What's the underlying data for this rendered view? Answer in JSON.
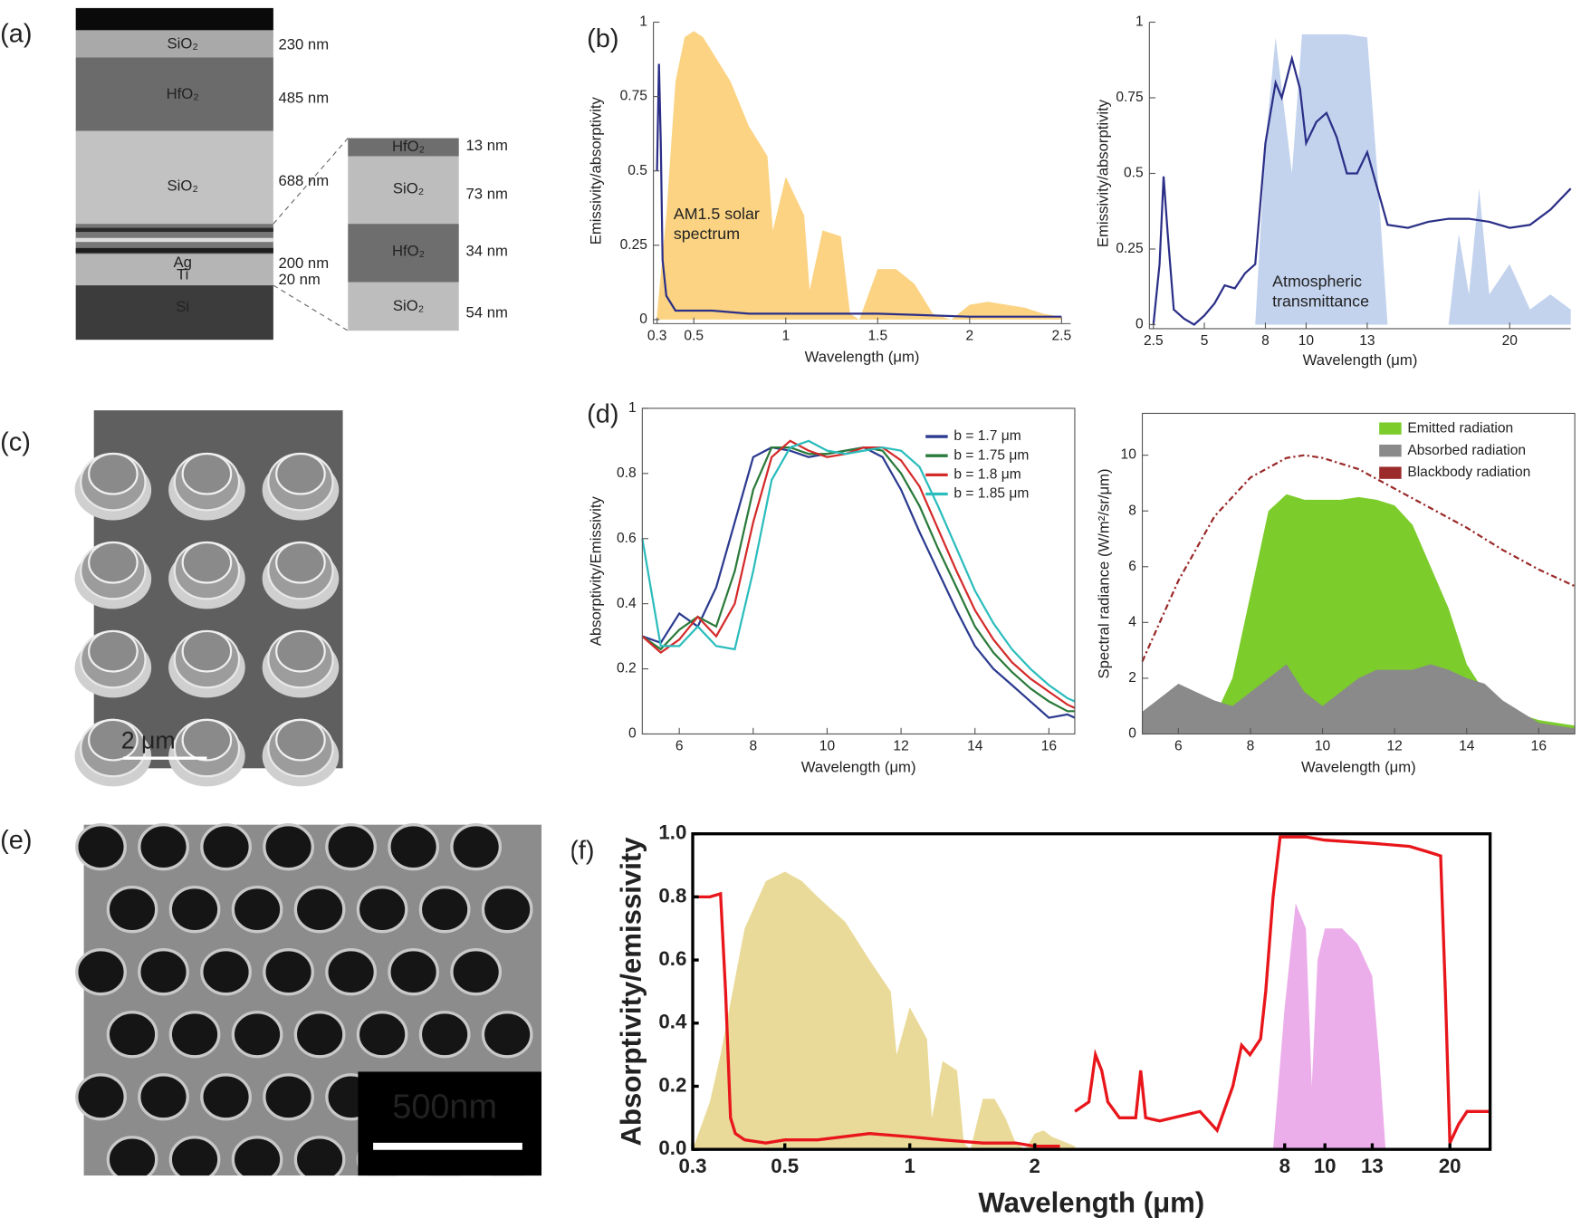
{
  "panel_labels": [
    "(a)",
    "(b)",
    "(c)",
    "(d)",
    "(e)",
    "(f)"
  ],
  "stack": {
    "layers": [
      {
        "label": "SiO₂",
        "thickness": "230 nm"
      },
      {
        "label": "HfO₂",
        "thickness": "485 nm"
      },
      {
        "label": "SiO₂",
        "thickness": "688 nm"
      },
      {
        "label": "Ag",
        "thickness": "200 nm"
      },
      {
        "label": "Ti",
        "thickness": "20 nm"
      },
      {
        "label": "Si"
      }
    ],
    "inset": [
      {
        "label": "HfO₂",
        "thickness": "13 nm"
      },
      {
        "label": "SiO₂",
        "thickness": "73 nm"
      },
      {
        "label": "HfO₂",
        "thickness": "34 nm"
      },
      {
        "label": "SiO₂",
        "thickness": "54 nm"
      }
    ]
  },
  "sem_cones": {
    "scale_bar": "2 μm"
  },
  "sem_pores": {
    "scale_bar": "500nm"
  },
  "chart_data": [
    {
      "type": "line",
      "xlabel": "Wavelength (μm)",
      "ylabel": "Emissivity/absorptivity",
      "xlim": [
        0.28,
        2.55
      ],
      "ylim": [
        0,
        1
      ],
      "xticks": [
        0.3,
        0.5,
        1,
        1.5,
        2,
        2.5
      ],
      "yticks": [
        0,
        0.25,
        0.5,
        0.75,
        1
      ],
      "annotation": [
        "AM1.5 solar",
        "spectrum"
      ],
      "series": [
        {
          "kind": "area",
          "color": "#fbd383",
          "x": [
            0.3,
            0.35,
            0.4,
            0.45,
            0.5,
            0.55,
            0.6,
            0.7,
            0.8,
            0.9,
            0.93,
            1.0,
            1.1,
            1.13,
            1.2,
            1.3,
            1.35,
            1.4,
            1.5,
            1.6,
            1.7,
            1.8,
            1.9,
            2.0,
            2.1,
            2.2,
            2.3,
            2.4,
            2.5
          ],
          "values": [
            0.02,
            0.35,
            0.8,
            0.95,
            0.97,
            0.95,
            0.9,
            0.8,
            0.65,
            0.55,
            0.3,
            0.48,
            0.35,
            0.1,
            0.3,
            0.28,
            0.02,
            0,
            0.17,
            0.17,
            0.12,
            0.02,
            0,
            0.05,
            0.06,
            0.05,
            0.04,
            0.02,
            0.01
          ]
        },
        {
          "kind": "line",
          "color": "#2b2f87",
          "x": [
            0.3,
            0.31,
            0.32,
            0.33,
            0.35,
            0.4,
            0.5,
            0.6,
            0.8,
            1.0,
            1.5,
            2.0,
            2.5
          ],
          "values": [
            0.5,
            0.86,
            0.6,
            0.2,
            0.08,
            0.03,
            0.03,
            0.03,
            0.02,
            0.02,
            0.02,
            0.01,
            0.01
          ]
        }
      ]
    },
    {
      "type": "line",
      "xlabel": "Wavelength (μm)",
      "ylabel": "Emissivity/absorptivity",
      "xlim": [
        2.3,
        23
      ],
      "ylim": [
        0,
        1
      ],
      "xticks": [
        2.5,
        5,
        8,
        10,
        13,
        20
      ],
      "yticks": [
        0,
        0.25,
        0.5,
        0.75,
        1
      ],
      "annotation": [
        "Atmospheric",
        "transmittance"
      ],
      "series": [
        {
          "kind": "area",
          "color": "#c3d3ee",
          "x": [
            7.5,
            8,
            8.5,
            9.3,
            9.8,
            11,
            12,
            13,
            13.5,
            14,
            17,
            17.5,
            18,
            18.5,
            19,
            20,
            21,
            22,
            23
          ],
          "values": [
            0,
            0.6,
            0.95,
            0.5,
            0.96,
            0.96,
            0.96,
            0.95,
            0.5,
            0,
            0,
            0.3,
            0.1,
            0.45,
            0.1,
            0.2,
            0.05,
            0.1,
            0.05
          ]
        },
        {
          "kind": "line",
          "color": "#2b2f87",
          "x": [
            2.5,
            2.8,
            3.0,
            3.2,
            3.5,
            4,
            4.5,
            5,
            5.5,
            6,
            6.5,
            7,
            7.5,
            8,
            8.5,
            8.8,
            9.3,
            9.7,
            10,
            10.5,
            11,
            11.5,
            12,
            12.5,
            13,
            13.5,
            14,
            15,
            16,
            17,
            18,
            19,
            20,
            21,
            22,
            23
          ],
          "values": [
            0,
            0.2,
            0.49,
            0.3,
            0.05,
            0.02,
            0,
            0.03,
            0.07,
            0.13,
            0.12,
            0.17,
            0.2,
            0.6,
            0.8,
            0.75,
            0.88,
            0.78,
            0.6,
            0.67,
            0.7,
            0.62,
            0.5,
            0.5,
            0.57,
            0.45,
            0.33,
            0.32,
            0.34,
            0.35,
            0.35,
            0.34,
            0.32,
            0.33,
            0.38,
            0.45
          ]
        }
      ]
    },
    {
      "type": "line",
      "xlabel": "Wavelength (μm)",
      "ylabel": "Absorptivity/Emissivity",
      "xlim": [
        5,
        16.7
      ],
      "ylim": [
        0,
        1
      ],
      "xticks": [
        6,
        8,
        10,
        12,
        14,
        16
      ],
      "yticks": [
        0,
        0.2,
        0.4,
        0.6,
        0.8,
        1
      ],
      "legend": "upper right",
      "series": [
        {
          "name": "b = 1.7 μm",
          "kind": "line",
          "color": "#2b3a8f",
          "x": [
            5,
            5.5,
            6,
            6.5,
            7,
            7.5,
            8,
            8.5,
            9,
            9.5,
            10,
            10.5,
            11,
            11.5,
            12,
            12.5,
            13,
            13.5,
            14,
            14.5,
            15,
            15.5,
            16,
            16.5,
            16.7
          ],
          "values": [
            0.3,
            0.28,
            0.37,
            0.33,
            0.45,
            0.65,
            0.85,
            0.88,
            0.87,
            0.85,
            0.86,
            0.87,
            0.88,
            0.85,
            0.75,
            0.62,
            0.5,
            0.38,
            0.27,
            0.2,
            0.15,
            0.1,
            0.05,
            0.06,
            0.05
          ]
        },
        {
          "name": "b = 1.75 μm",
          "kind": "line",
          "color": "#2a7a3a",
          "x": [
            5,
            5.5,
            6,
            6.5,
            7,
            7.5,
            8,
            8.5,
            9,
            9.5,
            10,
            10.5,
            11,
            11.5,
            12,
            12.5,
            13,
            13.5,
            14,
            14.5,
            15,
            15.5,
            16,
            16.5,
            16.7
          ],
          "values": [
            0.3,
            0.26,
            0.32,
            0.36,
            0.33,
            0.5,
            0.75,
            0.88,
            0.88,
            0.86,
            0.86,
            0.87,
            0.88,
            0.87,
            0.8,
            0.7,
            0.57,
            0.45,
            0.33,
            0.25,
            0.19,
            0.14,
            0.1,
            0.07,
            0.07
          ]
        },
        {
          "name": "b = 1.8 μm",
          "kind": "line",
          "color": "#d42a2a",
          "x": [
            5,
            5.5,
            6,
            6.5,
            7,
            7.5,
            8,
            8.5,
            9,
            9.5,
            10,
            10.5,
            11,
            11.5,
            12,
            12.5,
            13,
            13.5,
            14,
            14.5,
            15,
            15.5,
            16,
            16.5,
            16.7
          ],
          "values": [
            0.3,
            0.25,
            0.29,
            0.36,
            0.3,
            0.4,
            0.65,
            0.85,
            0.9,
            0.87,
            0.85,
            0.86,
            0.88,
            0.88,
            0.84,
            0.76,
            0.63,
            0.5,
            0.38,
            0.29,
            0.22,
            0.17,
            0.13,
            0.09,
            0.08
          ]
        },
        {
          "name": "b = 1.85 μm",
          "kind": "line",
          "color": "#2bbcbc",
          "x": [
            5,
            5.5,
            6,
            6.5,
            7,
            7.5,
            8,
            8.5,
            9,
            9.5,
            10,
            10.5,
            11,
            11.5,
            12,
            12.5,
            13,
            13.5,
            14,
            14.5,
            15,
            15.5,
            16,
            16.5,
            16.7
          ],
          "values": [
            0.6,
            0.27,
            0.27,
            0.33,
            0.27,
            0.26,
            0.5,
            0.78,
            0.88,
            0.9,
            0.87,
            0.86,
            0.87,
            0.88,
            0.87,
            0.82,
            0.7,
            0.57,
            0.44,
            0.34,
            0.26,
            0.2,
            0.15,
            0.11,
            0.1
          ]
        }
      ]
    },
    {
      "type": "line",
      "xlabel": "Wavelength (μm)",
      "ylabel": "Spectral radiance (W/m²/sr/μm)",
      "xlim": [
        5,
        17
      ],
      "ylim": [
        0,
        11.5
      ],
      "xticks": [
        6,
        8,
        10,
        12,
        14,
        16
      ],
      "yticks": [
        0,
        2,
        4,
        6,
        8,
        10
      ],
      "legend": "upper right",
      "series": [
        {
          "name": "Emitted radiation",
          "kind": "area",
          "color": "#7ccc2c",
          "x": [
            5,
            6,
            7,
            7.5,
            8,
            8.5,
            9,
            9.5,
            10,
            10.5,
            11,
            11.5,
            12,
            12.5,
            13,
            13.5,
            14,
            14.5,
            15,
            15.5,
            16,
            17
          ],
          "values": [
            0.3,
            0.4,
            0.6,
            2,
            5,
            8,
            8.6,
            8.4,
            8.4,
            8.4,
            8.5,
            8.4,
            8.2,
            7.5,
            6,
            4.5,
            2.5,
            1.5,
            1,
            0.7,
            0.5,
            0.3
          ]
        },
        {
          "name": "Absorbed radiation",
          "kind": "area",
          "color": "#8a8a8a",
          "x": [
            5,
            6,
            7,
            7.5,
            8,
            8.5,
            9,
            9.5,
            10,
            10.5,
            11,
            11.5,
            12,
            12.5,
            13,
            13.5,
            14,
            14.5,
            15,
            15.5,
            16,
            17
          ],
          "values": [
            0.8,
            1.8,
            1.2,
            1,
            1.5,
            2,
            2.5,
            1.5,
            1,
            1.5,
            2,
            2.3,
            2.3,
            2.3,
            2.5,
            2.3,
            2,
            1.8,
            1.2,
            0.8,
            0.4,
            0.2
          ]
        },
        {
          "name": "Blackbody radiation",
          "kind": "line",
          "dash": true,
          "color": "#9b2a2a",
          "x": [
            5,
            6,
            7,
            8,
            9,
            9.5,
            10,
            11,
            12,
            13,
            14,
            15,
            16,
            17
          ],
          "values": [
            2.6,
            5.5,
            7.8,
            9.2,
            9.9,
            10,
            9.9,
            9.5,
            8.8,
            8.1,
            7.4,
            6.6,
            5.9,
            5.3
          ]
        }
      ]
    },
    {
      "type": "line",
      "xlabel": "Wavelength (μm)",
      "ylabel": "Absorptivity/emissivity",
      "xlog": true,
      "xlim": [
        0.3,
        25
      ],
      "ylim": [
        0,
        1
      ],
      "xticks": [
        0.3,
        0.5,
        1,
        2,
        8,
        10,
        13,
        20
      ],
      "yticks": [
        {
          "value": 0,
          "label": "0.0"
        },
        0.2,
        0.4,
        0.6,
        0.8,
        {
          "value": 1,
          "label": "1.0"
        }
      ],
      "series": [
        {
          "kind": "area",
          "color": "#e6d487",
          "x": [
            0.3,
            0.33,
            0.35,
            0.4,
            0.45,
            0.5,
            0.55,
            0.6,
            0.7,
            0.8,
            0.9,
            0.93,
            1.0,
            1.1,
            1.13,
            1.2,
            1.3,
            1.35,
            1.4,
            1.5,
            1.6,
            1.7,
            1.8,
            1.9,
            2.0,
            2.1,
            2.2,
            2.3,
            2.5
          ],
          "values": [
            0,
            0.15,
            0.3,
            0.7,
            0.85,
            0.88,
            0.85,
            0.8,
            0.72,
            0.6,
            0.5,
            0.3,
            0.45,
            0.35,
            0.1,
            0.28,
            0.25,
            0.02,
            0,
            0.16,
            0.16,
            0.1,
            0.02,
            0,
            0.05,
            0.06,
            0.04,
            0.03,
            0.01
          ]
        },
        {
          "kind": "area",
          "color": "#e9a0e6",
          "x": [
            7.5,
            8,
            8.5,
            9,
            9.3,
            9.6,
            10,
            11,
            12,
            13,
            13.5,
            14
          ],
          "values": [
            0,
            0.45,
            0.78,
            0.7,
            0.2,
            0.6,
            0.7,
            0.7,
            0.65,
            0.55,
            0.3,
            0
          ]
        },
        {
          "kind": "line",
          "color": "#e8161b",
          "x": [
            0.3,
            0.33,
            0.35,
            0.36,
            0.37,
            0.38,
            0.4,
            0.45,
            0.5,
            0.6,
            0.8,
            1.0,
            1.2,
            1.5,
            1.8,
            2.0,
            2.3,
            2.4,
            2.5,
            2.7,
            2.8,
            2.9,
            3.0,
            3.2,
            3.5,
            3.6,
            3.7,
            4,
            5,
            5.5,
            6,
            6.3,
            6.6,
            7,
            7.2,
            7.5,
            7.8,
            8,
            9,
            10,
            13,
            16,
            18,
            19,
            19.5,
            20,
            21,
            22,
            24,
            25
          ],
          "values": [
            0.8,
            0.8,
            0.81,
            0.5,
            0.1,
            0.05,
            0.03,
            0.02,
            0.03,
            0.03,
            0.05,
            0.04,
            0.03,
            0.02,
            0.02,
            0.01,
            0.01,
            null,
            0.12,
            0.15,
            0.3,
            0.25,
            0.15,
            0.1,
            0.1,
            0.25,
            0.1,
            0.09,
            0.12,
            0.06,
            0.2,
            0.33,
            0.3,
            0.35,
            0.5,
            0.8,
            0.99,
            0.99,
            0.99,
            0.98,
            0.97,
            0.96,
            0.94,
            0.93,
            0.5,
            0.02,
            0.08,
            0.12,
            0.12,
            0.12
          ]
        }
      ]
    }
  ]
}
